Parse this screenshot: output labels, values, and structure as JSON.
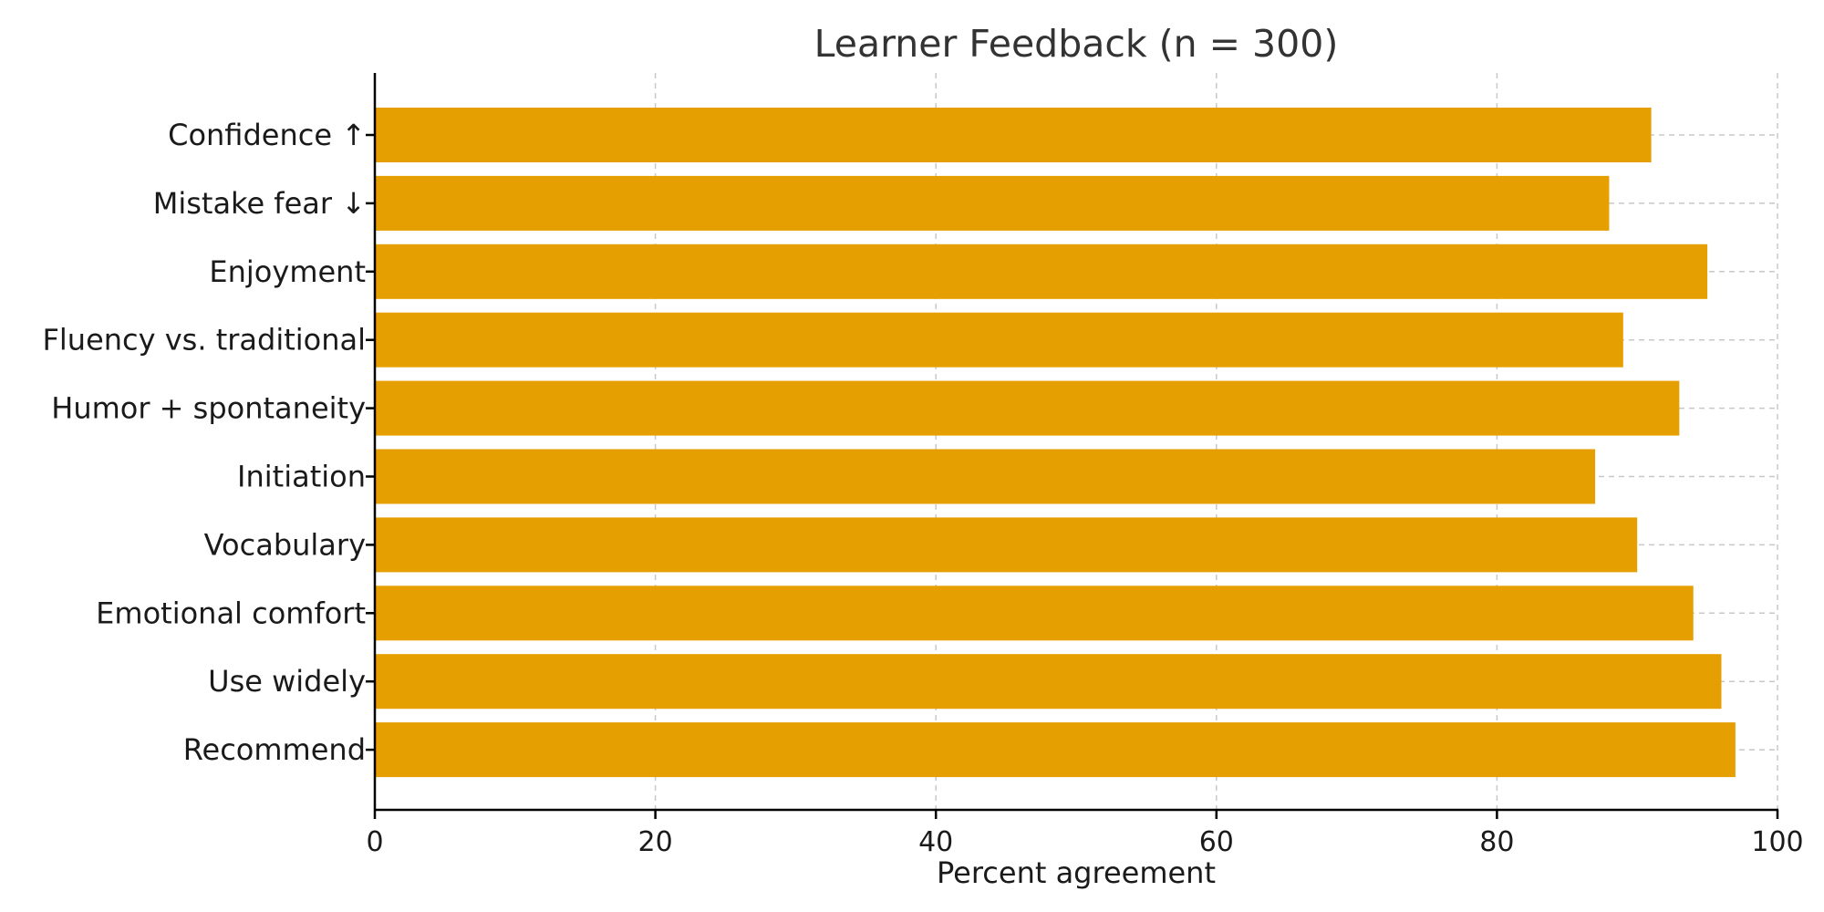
{
  "chart_data": {
    "type": "bar",
    "orientation": "horizontal",
    "title": "Learner Feedback (n = 300)",
    "xlabel": "Percent agreement",
    "ylabel": "",
    "xlim": [
      0,
      100
    ],
    "xticks": [
      0,
      20,
      40,
      60,
      80,
      100
    ],
    "grid": true,
    "bar_color": "#E69F00",
    "categories": [
      "Confidence ↑",
      "Mistake fear ↓",
      "Enjoyment",
      "Fluency vs. traditional",
      "Humor + spontaneity",
      "Initiation",
      "Vocabulary",
      "Emotional comfort",
      "Use widely",
      "Recommend"
    ],
    "values": [
      91,
      88,
      95,
      89,
      93,
      87,
      90,
      94,
      96,
      97
    ]
  }
}
